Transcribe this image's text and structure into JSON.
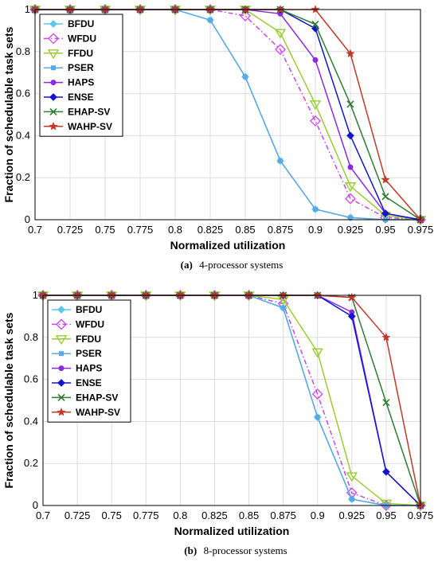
{
  "chart_data": [
    {
      "type": "line",
      "caption_label": "(a)",
      "caption_text": "4-processor systems",
      "xlabel": "Normalized utilization",
      "ylabel": "Fraction of schedulable task sets",
      "x": [
        0.7,
        0.725,
        0.75,
        0.775,
        0.8,
        0.825,
        0.85,
        0.875,
        0.9,
        0.925,
        0.95,
        0.975
      ],
      "xtick_labels": [
        "0.7",
        "0.725",
        "0.75",
        "0.775",
        "0.8",
        "0.825",
        "0.85",
        "0.875",
        "0.9",
        "0.925",
        "0.95",
        "0.975"
      ],
      "ytick_labels": [
        "0",
        "0.2",
        "0.4",
        "0.6",
        "0.8",
        "1"
      ],
      "xlim": [
        0.7,
        0.975
      ],
      "ylim": [
        0,
        1
      ],
      "grid": true,
      "legend_position": "top-left",
      "series": [
        {
          "name": "BFDU",
          "color": "#5bc8e8",
          "marker": "diamond-filled",
          "dash": "solid",
          "values": [
            1,
            1,
            1,
            1,
            1,
            0.95,
            0.68,
            0.28,
            0.05,
            0.01,
            0.0,
            0.0
          ]
        },
        {
          "name": "WFDU",
          "color": "#cc44ee",
          "marker": "diamond-open",
          "dash": "dashdot",
          "values": [
            1,
            1,
            1,
            1,
            1,
            1,
            0.97,
            0.81,
            0.47,
            0.1,
            0.01,
            0.0
          ]
        },
        {
          "name": "FFDU",
          "color": "#99cc33",
          "marker": "triangle-down-open",
          "dash": "solid",
          "values": [
            1,
            1,
            1,
            1,
            1,
            1,
            1,
            0.89,
            0.55,
            0.16,
            0.02,
            0.0
          ]
        },
        {
          "name": "PSER",
          "color": "#5aa9e6",
          "marker": "square",
          "dash": "solid",
          "values": [
            1,
            1,
            1,
            1,
            1,
            0.95,
            0.68,
            0.28,
            0.05,
            0.01,
            0.0,
            0.0
          ]
        },
        {
          "name": "HAPS",
          "color": "#8a2be2",
          "marker": "dot",
          "dash": "solid",
          "values": [
            1,
            1,
            1,
            1,
            1,
            1,
            1,
            0.98,
            0.76,
            0.25,
            0.03,
            0.0
          ]
        },
        {
          "name": "ENSE",
          "color": "#1414cc",
          "marker": "diamond-filled",
          "dash": "solid",
          "values": [
            1,
            1,
            1,
            1,
            1,
            1,
            1,
            1,
            0.91,
            0.4,
            0.03,
            0.0
          ]
        },
        {
          "name": "EHAP-SV",
          "color": "#2e7d32",
          "marker": "x",
          "dash": "solid",
          "values": [
            1,
            1,
            1,
            1,
            1,
            1,
            1,
            1,
            0.93,
            0.55,
            0.11,
            0.0
          ]
        },
        {
          "name": "WAHP-SV",
          "color": "#c0392b",
          "marker": "star",
          "dash": "solid",
          "values": [
            1,
            1,
            1,
            1,
            1,
            1,
            1,
            1,
            1,
            0.79,
            0.19,
            0.0
          ]
        }
      ]
    },
    {
      "type": "line",
      "caption_label": "(b)",
      "caption_text": "8-processor systems",
      "xlabel": "Normalized utilization",
      "ylabel": "Fraction of schedulable task sets",
      "x": [
        0.7,
        0.725,
        0.75,
        0.775,
        0.8,
        0.825,
        0.85,
        0.875,
        0.9,
        0.925,
        0.95,
        0.975
      ],
      "xtick_labels": [
        "0.7",
        "0.725",
        "0.75",
        "0.775",
        "0.8",
        "0.825",
        "0.85",
        "0.875",
        "0.9",
        "0.925",
        "0.95",
        "0.975"
      ],
      "ytick_labels": [
        "0",
        "0.2",
        "0.4",
        "0.6",
        "0.8",
        "1"
      ],
      "xlim": [
        0.7,
        0.975
      ],
      "ylim": [
        0,
        1
      ],
      "grid": true,
      "legend_position": "top-left",
      "series": [
        {
          "name": "BFDU",
          "color": "#5bc8e8",
          "marker": "diamond-filled",
          "dash": "solid",
          "values": [
            1,
            1,
            1,
            1,
            1,
            1,
            1,
            0.94,
            0.42,
            0.03,
            0.0,
            0.0
          ]
        },
        {
          "name": "WFDU",
          "color": "#cc44ee",
          "marker": "diamond-open",
          "dash": "dashdot",
          "values": [
            1,
            1,
            1,
            1,
            1,
            1,
            1,
            0.96,
            0.53,
            0.06,
            0.0,
            0.0
          ]
        },
        {
          "name": "FFDU",
          "color": "#99cc33",
          "marker": "triangle-down-open",
          "dash": "solid",
          "values": [
            1,
            1,
            1,
            1,
            1,
            1,
            1,
            0.98,
            0.73,
            0.14,
            0.01,
            0.0
          ]
        },
        {
          "name": "PSER",
          "color": "#5aa9e6",
          "marker": "square",
          "dash": "solid",
          "values": [
            1,
            1,
            1,
            1,
            1,
            1,
            1,
            0.94,
            0.42,
            0.03,
            0.0,
            0.0
          ]
        },
        {
          "name": "HAPS",
          "color": "#8a2be2",
          "marker": "dot",
          "dash": "solid",
          "values": [
            1,
            1,
            1,
            1,
            1,
            1,
            1,
            1,
            1,
            0.92,
            0.16,
            0.0
          ]
        },
        {
          "name": "ENSE",
          "color": "#1414cc",
          "marker": "diamond-filled",
          "dash": "solid",
          "values": [
            1,
            1,
            1,
            1,
            1,
            1,
            1,
            1,
            1,
            0.9,
            0.16,
            0.0
          ]
        },
        {
          "name": "EHAP-SV",
          "color": "#2e7d32",
          "marker": "x",
          "dash": "solid",
          "values": [
            1,
            1,
            1,
            1,
            1,
            1,
            1,
            1,
            1,
            0.99,
            0.49,
            0.0
          ]
        },
        {
          "name": "WAHP-SV",
          "color": "#c0392b",
          "marker": "star",
          "dash": "solid",
          "values": [
            1,
            1,
            1,
            1,
            1,
            1,
            1,
            1,
            1,
            0.99,
            0.8,
            0.0
          ]
        }
      ]
    }
  ]
}
